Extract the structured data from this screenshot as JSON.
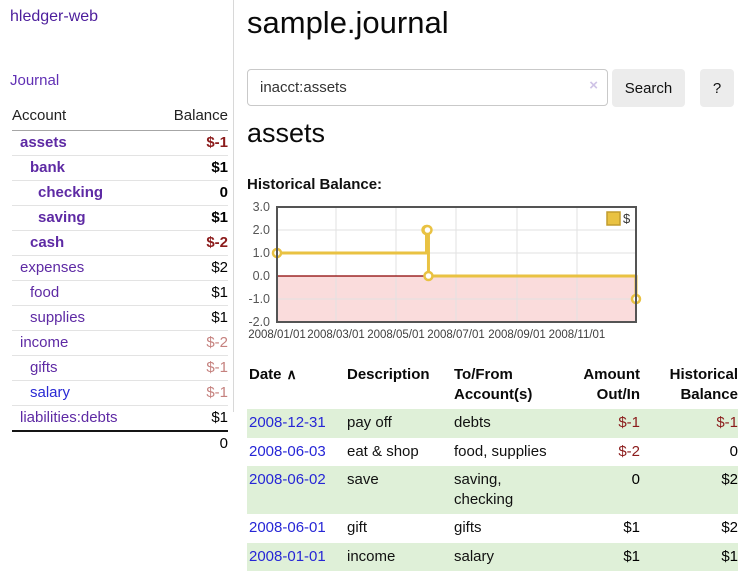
{
  "sidebar": {
    "brand": "hledger-web",
    "nav": {
      "journal_label": "Journal"
    },
    "table_headers": {
      "account": "Account",
      "balance": "Balance"
    },
    "accounts": [
      {
        "name": "assets",
        "depth": 1,
        "bold": true,
        "balance": "$-1",
        "balance_color": "darkred"
      },
      {
        "name": "bank",
        "depth": 2,
        "bold": true,
        "balance": "$1",
        "balance_color": "black"
      },
      {
        "name": "checking",
        "depth": 3,
        "bold": true,
        "balance": "0",
        "balance_color": "black"
      },
      {
        "name": "saving",
        "depth": 3,
        "bold": true,
        "balance": "$1",
        "balance_color": "black"
      },
      {
        "name": "cash",
        "depth": 2,
        "bold": true,
        "balance": "$-2",
        "balance_color": "darkred"
      },
      {
        "name": "expenses",
        "depth": 1,
        "bold": false,
        "balance": "$2",
        "balance_color": "black"
      },
      {
        "name": "food",
        "depth": 2,
        "bold": false,
        "balance": "$1",
        "balance_color": "black"
      },
      {
        "name": "supplies",
        "depth": 2,
        "bold": false,
        "balance": "$1",
        "balance_color": "black"
      },
      {
        "name": "income",
        "depth": 1,
        "bold": false,
        "balance": "$-2",
        "balance_color": "salmon"
      },
      {
        "name": "gifts",
        "depth": 2,
        "bold": false,
        "balance": "$-1",
        "balance_color": "salmon"
      },
      {
        "name": "salary",
        "depth": 2,
        "bold": false,
        "blue": true,
        "balance": "$-1",
        "balance_color": "salmon"
      },
      {
        "name": "liabilities:debts",
        "depth": 1,
        "bold": false,
        "balance": "$1",
        "balance_color": "black"
      }
    ],
    "total": "0"
  },
  "header": {
    "title": "sample.journal"
  },
  "search": {
    "value": "inacct:assets",
    "clear_icon": "×",
    "button_label": "Search",
    "help_label": "?"
  },
  "account_page": {
    "heading": "assets",
    "chart_label": "Historical Balance:"
  },
  "chart_data": {
    "type": "line",
    "step": true,
    "title": "Historical Balance",
    "xlim": [
      "2008-01-01",
      "2008-12-31"
    ],
    "ylim": [
      -2.0,
      3.0
    ],
    "yticks": [
      3.0,
      2.0,
      1.0,
      0.0,
      -1.0,
      -2.0
    ],
    "xticks": [
      "2008/01/01",
      "2008/03/01",
      "2008/05/01",
      "2008/07/01",
      "2008/09/01",
      "2008/11/01"
    ],
    "grid": true,
    "legend": {
      "label": "$",
      "position": "top-right"
    },
    "negative_fill": "#fadcdc",
    "zero_line_color": "#8b0000",
    "series": [
      {
        "name": "$",
        "color": "#e9c242",
        "points": [
          [
            "2008-01-01",
            1
          ],
          [
            "2008-06-01",
            2
          ],
          [
            "2008-06-02",
            2
          ],
          [
            "2008-06-03",
            0
          ],
          [
            "2008-12-31",
            -1
          ]
        ]
      }
    ]
  },
  "transactions": {
    "headers": {
      "date": "Date",
      "sort_icon": "∧",
      "description": "Description",
      "accounts": "To/From Account(s)",
      "amount": "Amount Out/In",
      "balance": "Historical Balance"
    },
    "rows": [
      {
        "date": "2008-12-31",
        "description": "pay off",
        "accounts": "debts",
        "amount": "$-1",
        "amount_color": "darkred",
        "balance": "$-1",
        "balance_color": "darkred"
      },
      {
        "date": "2008-06-03",
        "description": "eat & shop",
        "accounts": "food, supplies",
        "amount": "$-2",
        "amount_color": "darkred",
        "balance": "0",
        "balance_color": "black"
      },
      {
        "date": "2008-06-02",
        "description": "save",
        "accounts": "saving, checking",
        "amount": "0",
        "amount_color": "black",
        "balance": "$2",
        "balance_color": "black"
      },
      {
        "date": "2008-06-01",
        "description": "gift",
        "accounts": "gifts",
        "amount": "$1",
        "amount_color": "black",
        "balance": "$2",
        "balance_color": "black"
      },
      {
        "date": "2008-01-01",
        "description": "income",
        "accounts": "salary",
        "amount": "$1",
        "amount_color": "black",
        "balance": "$1",
        "balance_color": "black"
      }
    ]
  }
}
